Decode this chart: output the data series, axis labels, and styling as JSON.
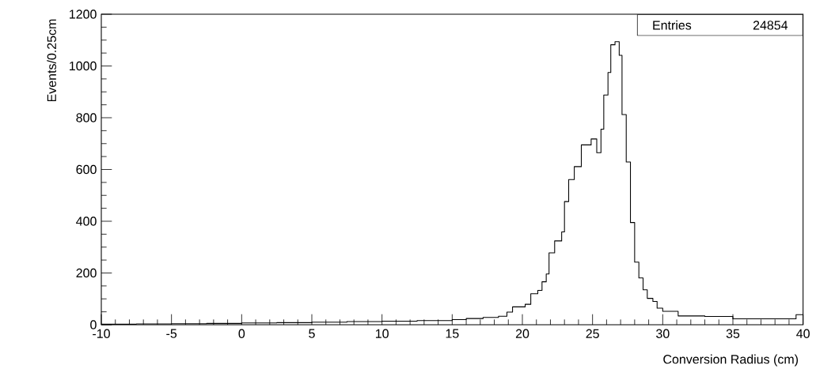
{
  "chart_data": {
    "type": "histogram",
    "xlabel": "Conversion Radius (cm)",
    "ylabel": "Events/0.25cm",
    "annotations": [
      "Entries",
      "24854"
    ],
    "bins": [
      -10,
      -7.5,
      -5,
      -2.5,
      0,
      2.5,
      5,
      7.5,
      10,
      12.5,
      15,
      16,
      17.2,
      18.3,
      18.9,
      19.3,
      20.2,
      20.6,
      21.1,
      21.4,
      21.7,
      21.9,
      22.3,
      22.8,
      23.0,
      23.3,
      23.7,
      24.2,
      24.9,
      25.3,
      25.6,
      25.8,
      26.1,
      26.3,
      26.6,
      26.9,
      27.1,
      27.4,
      27.7,
      28.0,
      28.3,
      28.6,
      28.9,
      29.3,
      29.6,
      30.0,
      31.1,
      33.0,
      35.0,
      37.0,
      39.5,
      40
    ],
    "values": [
      2,
      3,
      4,
      5,
      7,
      8,
      10,
      12,
      14,
      16,
      20,
      24,
      28,
      33,
      49,
      69,
      79,
      120,
      133,
      166,
      196,
      278,
      324,
      359,
      476,
      561,
      611,
      695,
      718,
      665,
      756,
      888,
      975,
      1082,
      1094,
      1041,
      812,
      629,
      395,
      242,
      181,
      135,
      102,
      90,
      64,
      52,
      34,
      32,
      23,
      23,
      39
    ],
    "color": "#000000",
    "xlim": [
      -10,
      40
    ],
    "xticks": [
      -10,
      -5,
      0,
      5,
      10,
      15,
      20,
      25,
      30,
      35,
      40
    ],
    "ylim": [
      0,
      1200
    ],
    "yticks": [
      0,
      200,
      400,
      600,
      800,
      1000,
      1200
    ],
    "grid": false
  }
}
